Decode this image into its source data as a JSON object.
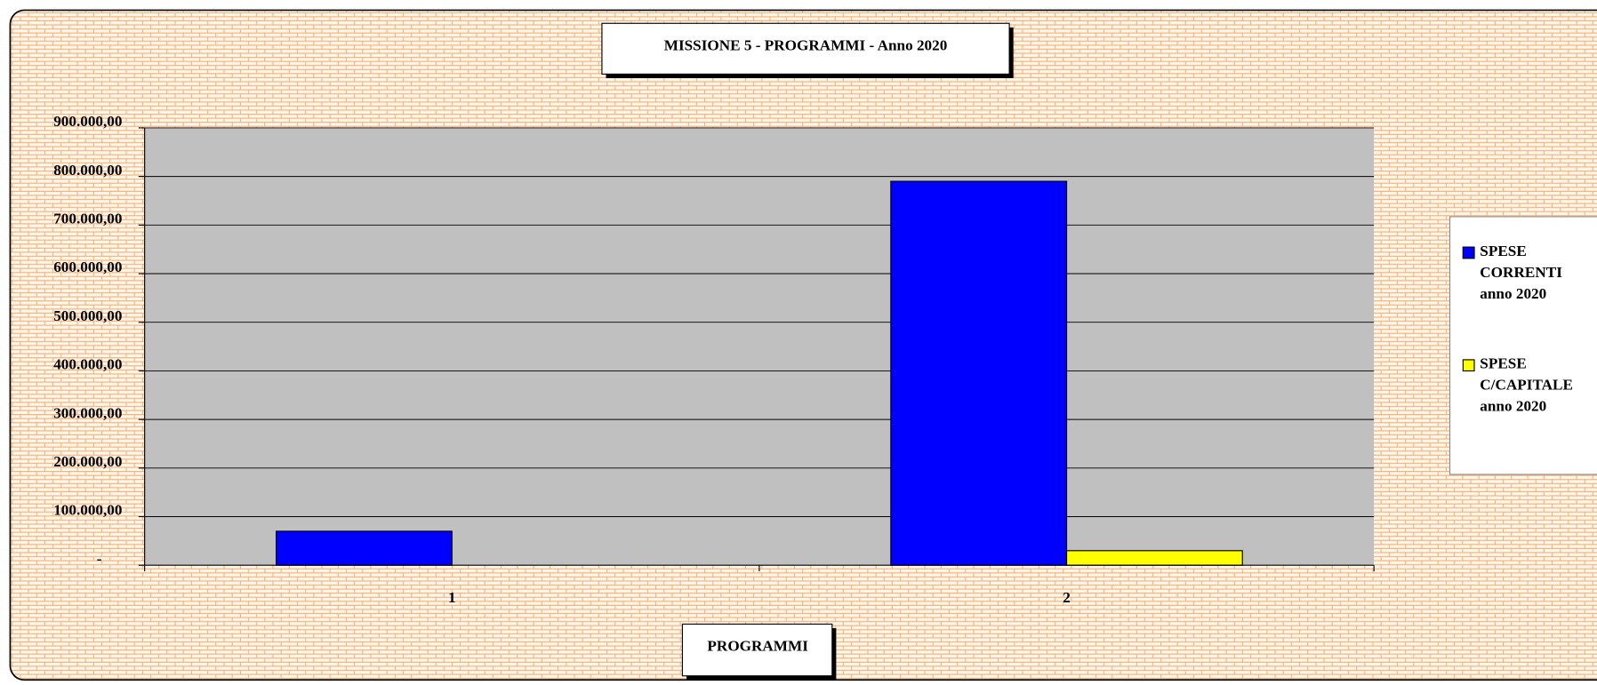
{
  "chart_data": {
    "type": "bar",
    "title": "MISSIONE 5 - PROGRAMMI - Anno 2020",
    "x_label": "PROGRAMMI",
    "categories": [
      "1",
      "2"
    ],
    "series": [
      {
        "name": "SPESE CORRENTI anno 2020",
        "color": "#0000ff",
        "values": [
          70000,
          790000
        ]
      },
      {
        "name": "SPESE C/CAPITALE anno 2020",
        "color": "#ffff00",
        "values": [
          0,
          30000
        ]
      }
    ],
    "ylim": [
      0,
      900000
    ],
    "yticks": [
      {
        "value": 0,
        "label": "-"
      },
      {
        "value": 100000,
        "label": "100.000,00"
      },
      {
        "value": 200000,
        "label": "200.000,00"
      },
      {
        "value": 300000,
        "label": "300.000,00"
      },
      {
        "value": 400000,
        "label": "400.000,00"
      },
      {
        "value": 500000,
        "label": "500.000,00"
      },
      {
        "value": 600000,
        "label": "600.000,00"
      },
      {
        "value": 700000,
        "label": "700.000,00"
      },
      {
        "value": 800000,
        "label": "800.000,00"
      },
      {
        "value": 900000,
        "label": "900.000,00"
      }
    ],
    "grid": true,
    "legend": "right"
  }
}
